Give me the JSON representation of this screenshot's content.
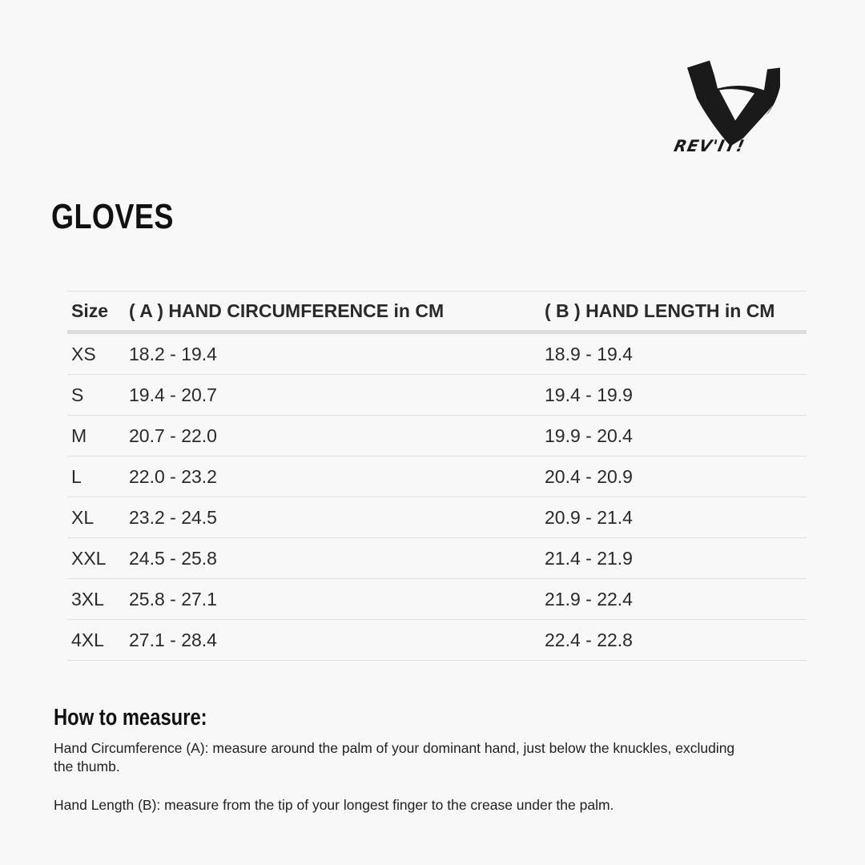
{
  "brand": {
    "name": "REV'IT!",
    "color": "#1a1a1a"
  },
  "title": "GLOVES",
  "table": {
    "headers": [
      "Size",
      "( A ) HAND CIRCUMFERENCE in CM",
      "( B ) HAND LENGTH in CM"
    ],
    "rows": [
      [
        "XS",
        "18.2 - 19.4",
        "18.9 - 19.4"
      ],
      [
        "S",
        "19.4 - 20.7",
        "19.4 - 19.9"
      ],
      [
        "M",
        "20.7 - 22.0",
        "19.9 - 20.4"
      ],
      [
        "L",
        "22.0 - 23.2",
        "20.4 - 20.9"
      ],
      [
        "XL",
        "23.2 - 24.5",
        "20.9 - 21.4"
      ],
      [
        "XXL",
        "24.5 - 25.8",
        "21.4 - 21.9"
      ],
      [
        "3XL",
        "25.8 - 27.1",
        "21.9 - 22.4"
      ],
      [
        "4XL",
        "27.1 - 28.4",
        "22.4 - 22.8"
      ]
    ]
  },
  "how_to": {
    "heading": "How to measure:",
    "circumference": "Hand Circumference (A): measure around the palm of your dominant hand, just below the knuckles, excluding the thumb.",
    "length": "Hand Length (B): measure from the tip of your longest finger to the crease under the palm."
  }
}
